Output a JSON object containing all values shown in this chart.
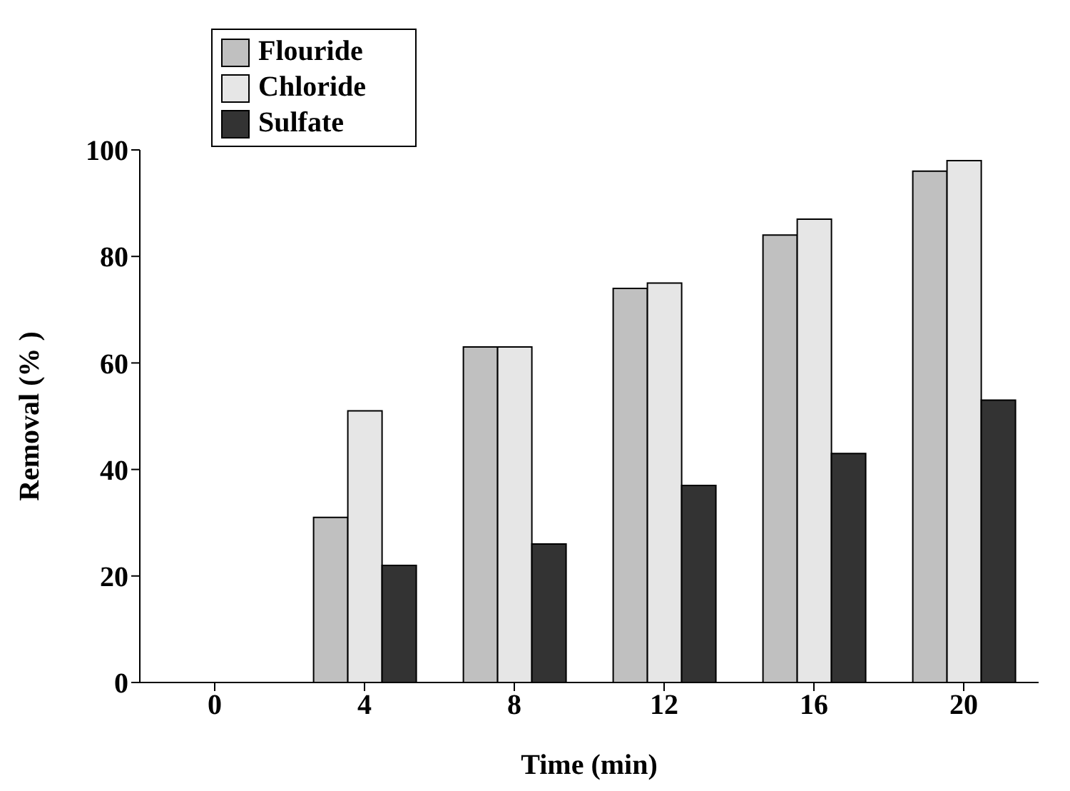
{
  "chart_data": {
    "type": "bar",
    "xlabel": "Time (min)",
    "ylabel": "Removal (% )",
    "categories": [
      "0",
      "4",
      "8",
      "12",
      "16",
      "20"
    ],
    "series": [
      {
        "name": "Flouride",
        "color": "#c0c0c0",
        "values": [
          0,
          31,
          63,
          74,
          84,
          96
        ]
      },
      {
        "name": "Chloride",
        "color": "#e6e6e6",
        "values": [
          0,
          51,
          63,
          75,
          87,
          98
        ]
      },
      {
        "name": "Sulfate",
        "color": "#333333",
        "values": [
          0,
          22,
          26,
          37,
          43,
          53
        ]
      }
    ],
    "ylim": [
      0,
      100
    ],
    "yticks": [
      0,
      20,
      40,
      60,
      80,
      100
    ],
    "grid": false,
    "legend": "top left"
  }
}
